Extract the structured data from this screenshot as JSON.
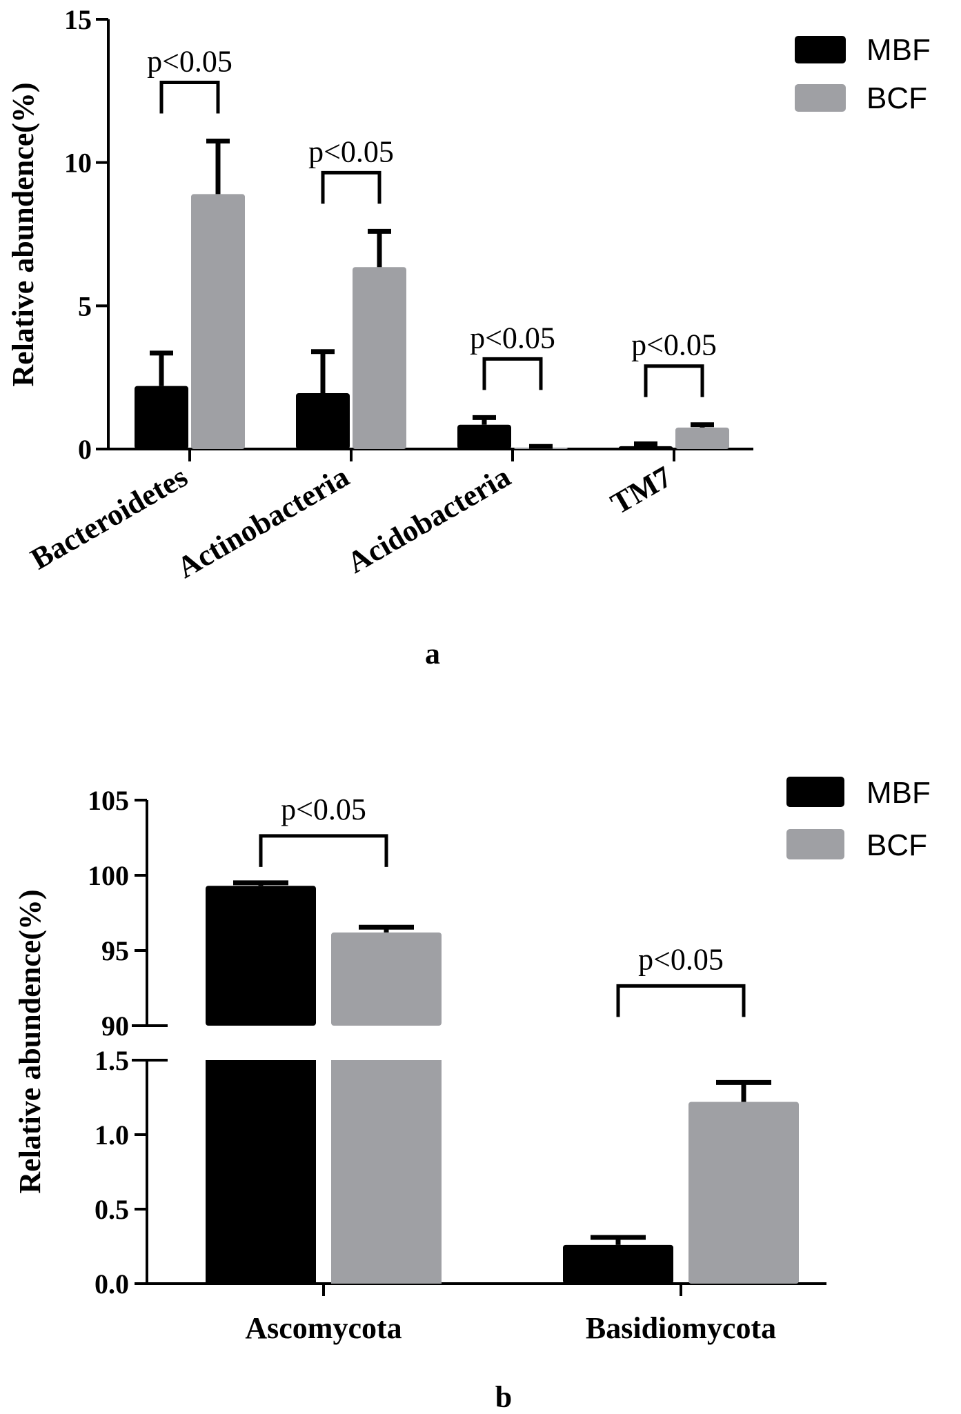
{
  "colors": {
    "MBF": "#000000",
    "BCF": "#9fa0a4"
  },
  "chart_data": [
    {
      "panel": "a",
      "type": "bar",
      "title": "",
      "ylabel": "Relative abundence(%)",
      "xlabel": "",
      "ylim": [
        0,
        15
      ],
      "yticks": [
        "0",
        "5",
        "10",
        "15"
      ],
      "categories": [
        "Bacteroidetes",
        "Actinobacteria",
        "Acidobacteria",
        "TM7"
      ],
      "series": [
        {
          "name": "MBF",
          "values": [
            2.2,
            1.95,
            0.85,
            0.1
          ],
          "errors": [
            1.15,
            1.45,
            0.25,
            0.08
          ]
        },
        {
          "name": "BCF",
          "values": [
            8.9,
            6.35,
            0.05,
            0.75
          ],
          "errors": [
            1.85,
            1.25,
            0.04,
            0.1
          ]
        }
      ],
      "annotations": [
        "p<0.05",
        "p<0.05",
        "p<0.05",
        "p<0.05"
      ],
      "legend": [
        "MBF",
        "BCF"
      ],
      "legend_position": "top-right"
    },
    {
      "panel": "b",
      "type": "bar",
      "title": "",
      "ylabel": "Relative abundence(%)",
      "xlabel": "",
      "y_axis_break": true,
      "ylim_lower": [
        0,
        1.5
      ],
      "ylim_upper": [
        90,
        105
      ],
      "yticks_lower": [
        "0.0",
        "0.5",
        "1.0",
        "1.5"
      ],
      "yticks_upper": [
        "90",
        "95",
        "100",
        "105"
      ],
      "categories": [
        "Ascomycota",
        "Basidiomycota"
      ],
      "series": [
        {
          "name": "MBF",
          "values": [
            99.3,
            0.26
          ],
          "errors": [
            0.2,
            0.05
          ]
        },
        {
          "name": "BCF",
          "values": [
            96.2,
            1.22
          ],
          "errors": [
            0.35,
            0.13
          ]
        }
      ],
      "annotations": [
        "p<0.05",
        "p<0.05"
      ],
      "legend": [
        "MBF",
        "BCF"
      ],
      "legend_position": "top-right"
    }
  ]
}
